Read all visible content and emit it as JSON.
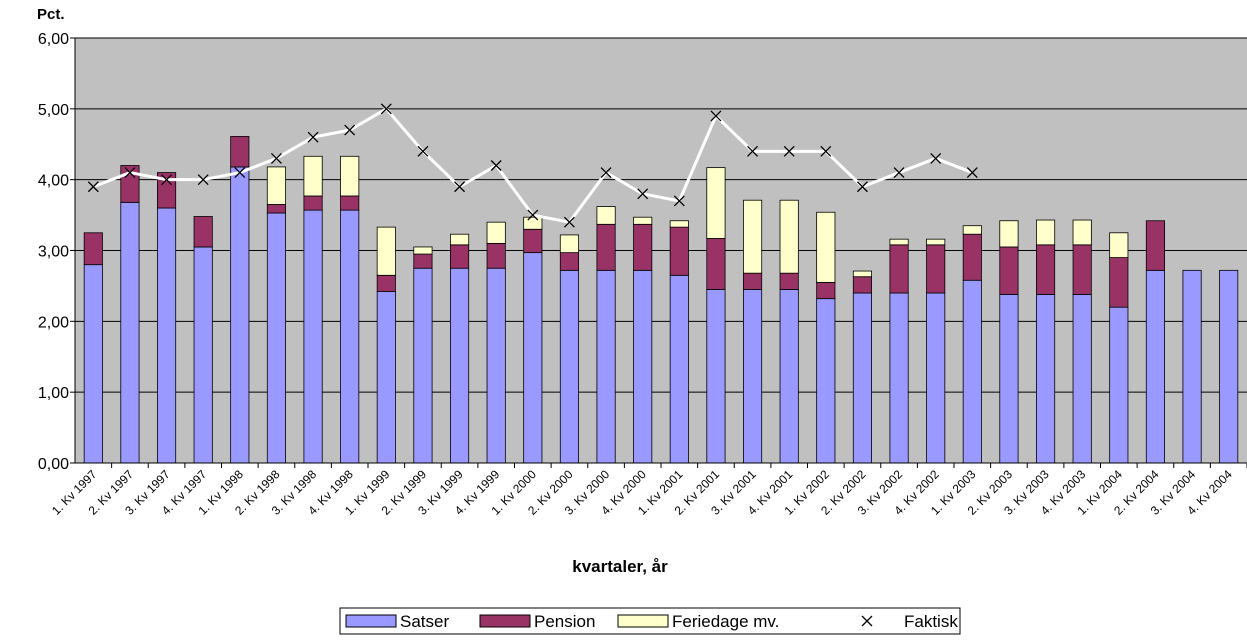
{
  "chart_data": {
    "type": "bar",
    "y_label": "Pct.",
    "x_label": "kvartaler, år",
    "categories": [
      "1. Kv 1997",
      "2. Kv 1997",
      "3. Kv 1997",
      "4. Kv 1997",
      "1. Kv 1998",
      "2. Kv 1998",
      "3. Kv 1998",
      "4. Kv 1998",
      "1. Kv 1999",
      "2. Kv 1999",
      "3. Kv 1999",
      "4. Kv 1999",
      "1. Kv 2000",
      "2. Kv 2000",
      "3. Kv 2000",
      "4. Kv 2000",
      "1. Kv 2001",
      "2. Kv 2001",
      "3. Kv 2001",
      "4. Kv 2001",
      "1. Kv 2002",
      "2. Kv 2002",
      "3. Kv 2002",
      "4. Kv 2002",
      "1. Kv 2003",
      "2. Kv 2003",
      "3. Kv 2003",
      "4. Kv 2003",
      "1. Kv 2004",
      "2. Kv 2004",
      "3. Kv 2004",
      "4. Kv 2004"
    ],
    "series": [
      {
        "name": "Satser",
        "type": "bar",
        "color": "#9999ff",
        "values": [
          2.8,
          3.68,
          3.6,
          3.05,
          4.18,
          3.53,
          3.57,
          3.57,
          2.42,
          2.75,
          2.75,
          2.75,
          2.97,
          2.72,
          2.72,
          2.72,
          2.65,
          2.45,
          2.45,
          2.45,
          2.32,
          2.4,
          2.4,
          2.4,
          2.58,
          2.38,
          2.38,
          2.38,
          2.2,
          2.72,
          2.72,
          2.72
        ]
      },
      {
        "name": "Pension",
        "type": "bar",
        "color": "#993366",
        "values": [
          0.45,
          0.52,
          0.5,
          0.43,
          0.43,
          0.12,
          0.2,
          0.2,
          0.23,
          0.2,
          0.33,
          0.35,
          0.33,
          0.25,
          0.65,
          0.65,
          0.68,
          0.72,
          0.23,
          0.23,
          0.23,
          0.23,
          0.68,
          0.68,
          0.65,
          0.67,
          0.7,
          0.7,
          0.7,
          0.7,
          0,
          0
        ]
      },
      {
        "name": "Feriedage mv.",
        "type": "bar",
        "color": "#ffffcc",
        "values": [
          0,
          0,
          0,
          0,
          0,
          0.53,
          0.56,
          0.56,
          0.68,
          0.1,
          0.15,
          0.3,
          0.17,
          0.25,
          0.25,
          0.1,
          0.09,
          1.0,
          1.03,
          1.03,
          0.99,
          0.08,
          0.08,
          0.08,
          0.12,
          0.37,
          0.35,
          0.35,
          0.35,
          0,
          0,
          0
        ]
      },
      {
        "name": "Faktisk",
        "type": "line",
        "color": "#ffffff",
        "marker_color": "#000000",
        "values": [
          3.9,
          4.1,
          4.0,
          4.0,
          4.1,
          4.3,
          4.6,
          4.7,
          5.0,
          4.4,
          3.9,
          4.2,
          3.5,
          3.4,
          4.1,
          3.8,
          3.7,
          4.9,
          4.4,
          4.4,
          4.4,
          3.9,
          4.1,
          4.3,
          4.1,
          null,
          null,
          null,
          null,
          null,
          null,
          null
        ]
      }
    ],
    "ylim": [
      0,
      6
    ],
    "yticks": [
      {
        "value": 0,
        "label": "0,00"
      },
      {
        "value": 1,
        "label": "1,00"
      },
      {
        "value": 2,
        "label": "2,00"
      },
      {
        "value": 3,
        "label": "3,00"
      },
      {
        "value": 4,
        "label": "4,00"
      },
      {
        "value": 5,
        "label": "5,00"
      },
      {
        "value": 6,
        "label": "6,00"
      }
    ],
    "grid": true,
    "plot_background": "#c0c0c0",
    "legend": "bottom"
  }
}
